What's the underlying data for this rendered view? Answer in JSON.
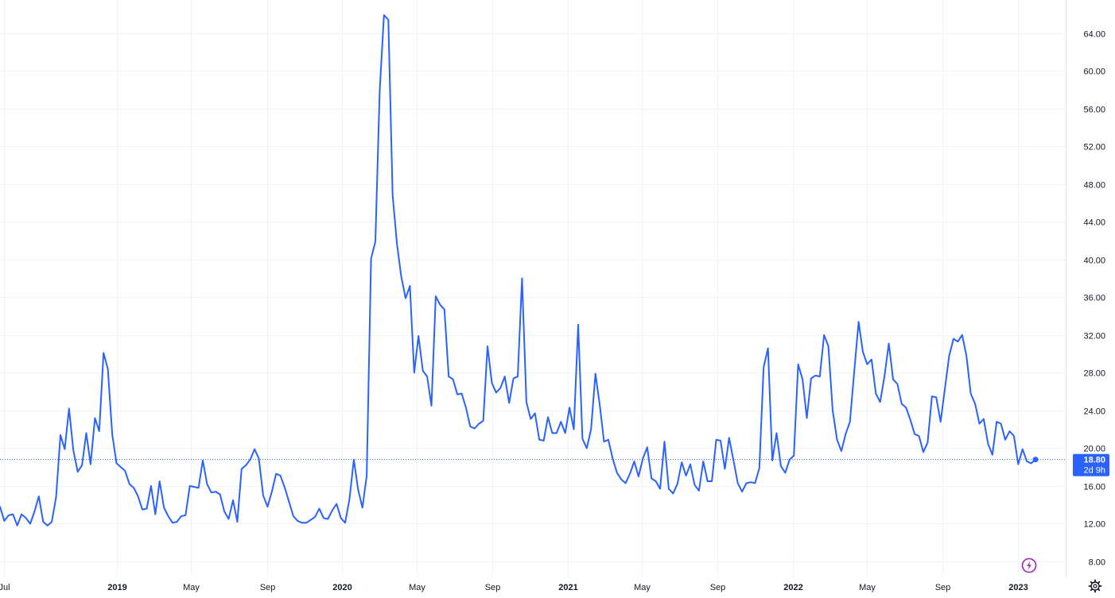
{
  "chart_data": {
    "type": "line",
    "title": "",
    "xlabel": "",
    "ylabel": "",
    "ylim": [
      6.4,
      67.5
    ],
    "xlim": [
      "2018-06-25",
      "2023-03-20"
    ],
    "grid": true,
    "y_ticks": [
      "8.00",
      "12.00",
      "16.00",
      "20.00",
      "24.00",
      "28.00",
      "32.00",
      "36.00",
      "40.00",
      "44.00",
      "48.00",
      "52.00",
      "56.00",
      "60.00",
      "64.00"
    ],
    "x_ticks": [
      {
        "label": "Jul",
        "date": "2018-07-01",
        "year": false
      },
      {
        "label": "2019",
        "date": "2019-01-01",
        "year": true
      },
      {
        "label": "May",
        "date": "2019-05-01",
        "year": false
      },
      {
        "label": "Sep",
        "date": "2019-09-01",
        "year": false
      },
      {
        "label": "2020",
        "date": "2020-01-01",
        "year": true
      },
      {
        "label": "May",
        "date": "2020-05-01",
        "year": false
      },
      {
        "label": "Sep",
        "date": "2020-09-01",
        "year": false
      },
      {
        "label": "2021",
        "date": "2021-01-01",
        "year": true
      },
      {
        "label": "May",
        "date": "2021-05-01",
        "year": false
      },
      {
        "label": "Sep",
        "date": "2021-09-01",
        "year": false
      },
      {
        "label": "2022",
        "date": "2022-01-01",
        "year": true
      },
      {
        "label": "May",
        "date": "2022-05-01",
        "year": false
      },
      {
        "label": "Sep",
        "date": "2022-09-01",
        "year": false
      },
      {
        "label": "2023",
        "date": "2023-01-01",
        "year": true
      }
    ],
    "series": [
      {
        "color": "#2962ff",
        "points": [
          [
            "2018-06-25",
            13.8
          ],
          [
            "2018-07-02",
            12.3
          ],
          [
            "2018-07-09",
            12.9
          ],
          [
            "2018-07-16",
            13.0
          ],
          [
            "2018-07-23",
            11.8
          ],
          [
            "2018-07-30",
            13.0
          ],
          [
            "2018-08-06",
            12.6
          ],
          [
            "2018-08-13",
            12.0
          ],
          [
            "2018-08-20",
            13.3
          ],
          [
            "2018-08-27",
            14.9
          ],
          [
            "2018-09-03",
            12.2
          ],
          [
            "2018-09-10",
            11.8
          ],
          [
            "2018-09-17",
            12.2
          ],
          [
            "2018-09-24",
            14.8
          ],
          [
            "2018-10-01",
            21.4
          ],
          [
            "2018-10-08",
            19.9
          ],
          [
            "2018-10-15",
            24.2
          ],
          [
            "2018-10-22",
            19.8
          ],
          [
            "2018-10-29",
            17.5
          ],
          [
            "2018-11-05",
            18.2
          ],
          [
            "2018-11-12",
            21.6
          ],
          [
            "2018-11-19",
            18.3
          ],
          [
            "2018-11-26",
            23.2
          ],
          [
            "2018-12-03",
            21.8
          ],
          [
            "2018-12-10",
            30.1
          ],
          [
            "2018-12-17",
            28.4
          ],
          [
            "2018-12-24",
            21.5
          ],
          [
            "2018-12-31",
            18.4
          ],
          [
            "2019-01-07",
            18.0
          ],
          [
            "2019-01-14",
            17.6
          ],
          [
            "2019-01-21",
            16.2
          ],
          [
            "2019-01-28",
            15.8
          ],
          [
            "2019-02-04",
            14.9
          ],
          [
            "2019-02-11",
            13.5
          ],
          [
            "2019-02-18",
            13.6
          ],
          [
            "2019-02-25",
            16.0
          ],
          [
            "2019-03-04",
            13.0
          ],
          [
            "2019-03-11",
            16.5
          ],
          [
            "2019-03-18",
            13.7
          ],
          [
            "2019-03-25",
            12.8
          ],
          [
            "2019-04-01",
            12.1
          ],
          [
            "2019-04-08",
            12.2
          ],
          [
            "2019-04-15",
            12.8
          ],
          [
            "2019-04-22",
            12.9
          ],
          [
            "2019-04-29",
            16.0
          ],
          [
            "2019-05-06",
            15.9
          ],
          [
            "2019-05-13",
            15.8
          ],
          [
            "2019-05-20",
            18.7
          ],
          [
            "2019-05-27",
            16.2
          ],
          [
            "2019-06-03",
            15.3
          ],
          [
            "2019-06-10",
            15.4
          ],
          [
            "2019-06-17",
            15.1
          ],
          [
            "2019-06-24",
            13.3
          ],
          [
            "2019-07-01",
            12.5
          ],
          [
            "2019-07-08",
            14.5
          ],
          [
            "2019-07-15",
            12.2
          ],
          [
            "2019-07-22",
            17.8
          ],
          [
            "2019-07-29",
            18.2
          ],
          [
            "2019-08-05",
            18.8
          ],
          [
            "2019-08-12",
            19.9
          ],
          [
            "2019-08-19",
            18.9
          ],
          [
            "2019-08-26",
            15.0
          ],
          [
            "2019-09-02",
            13.8
          ],
          [
            "2019-09-09",
            15.4
          ],
          [
            "2019-09-16",
            17.3
          ],
          [
            "2019-09-23",
            17.1
          ],
          [
            "2019-09-30",
            15.8
          ],
          [
            "2019-10-07",
            14.3
          ],
          [
            "2019-10-14",
            12.8
          ],
          [
            "2019-10-21",
            12.3
          ],
          [
            "2019-10-28",
            12.1
          ],
          [
            "2019-11-04",
            12.1
          ],
          [
            "2019-11-11",
            12.4
          ],
          [
            "2019-11-18",
            12.7
          ],
          [
            "2019-11-25",
            13.6
          ],
          [
            "2019-12-02",
            12.6
          ],
          [
            "2019-12-09",
            12.5
          ],
          [
            "2019-12-16",
            13.4
          ],
          [
            "2019-12-23",
            14.1
          ],
          [
            "2019-12-30",
            12.6
          ],
          [
            "2020-01-06",
            12.1
          ],
          [
            "2020-01-13",
            14.6
          ],
          [
            "2020-01-20",
            18.8
          ],
          [
            "2020-01-27",
            15.6
          ],
          [
            "2020-02-03",
            13.7
          ],
          [
            "2020-02-10",
            17.1
          ],
          [
            "2020-02-17",
            40.1
          ],
          [
            "2020-02-24",
            41.9
          ],
          [
            "2020-03-02",
            57.8
          ],
          [
            "2020-03-09",
            65.9
          ],
          [
            "2020-03-16",
            65.4
          ],
          [
            "2020-03-23",
            46.8
          ],
          [
            "2020-03-30",
            41.7
          ],
          [
            "2020-04-06",
            38.2
          ],
          [
            "2020-04-13",
            35.9
          ],
          [
            "2020-04-20",
            37.2
          ],
          [
            "2020-04-27",
            28.0
          ],
          [
            "2020-05-04",
            31.9
          ],
          [
            "2020-05-11",
            28.2
          ],
          [
            "2020-05-18",
            27.6
          ],
          [
            "2020-05-25",
            24.5
          ],
          [
            "2020-06-01",
            36.1
          ],
          [
            "2020-06-08",
            35.2
          ],
          [
            "2020-06-15",
            34.7
          ],
          [
            "2020-06-22",
            27.6
          ],
          [
            "2020-06-29",
            27.3
          ],
          [
            "2020-07-06",
            25.7
          ],
          [
            "2020-07-13",
            25.8
          ],
          [
            "2020-07-20",
            24.3
          ],
          [
            "2020-07-27",
            22.3
          ],
          [
            "2020-08-03",
            22.1
          ],
          [
            "2020-08-10",
            22.6
          ],
          [
            "2020-08-17",
            22.9
          ],
          [
            "2020-08-24",
            30.8
          ],
          [
            "2020-08-31",
            26.9
          ],
          [
            "2020-09-07",
            25.9
          ],
          [
            "2020-09-14",
            26.4
          ],
          [
            "2020-09-21",
            27.6
          ],
          [
            "2020-09-28",
            24.8
          ],
          [
            "2020-10-05",
            27.4
          ],
          [
            "2020-10-12",
            27.6
          ],
          [
            "2020-10-19",
            38.0
          ],
          [
            "2020-10-26",
            24.9
          ],
          [
            "2020-11-02",
            23.1
          ],
          [
            "2020-11-09",
            23.7
          ],
          [
            "2020-11-16",
            20.9
          ],
          [
            "2020-11-23",
            20.8
          ],
          [
            "2020-11-30",
            23.3
          ],
          [
            "2020-12-07",
            21.6
          ],
          [
            "2020-12-14",
            21.6
          ],
          [
            "2020-12-21",
            22.8
          ],
          [
            "2020-12-28",
            21.6
          ],
          [
            "2021-01-04",
            24.3
          ],
          [
            "2021-01-11",
            22.0
          ],
          [
            "2021-01-18",
            33.1
          ],
          [
            "2021-01-25",
            21.0
          ],
          [
            "2021-02-01",
            20.0
          ],
          [
            "2021-02-08",
            22.0
          ],
          [
            "2021-02-15",
            27.9
          ],
          [
            "2021-02-22",
            24.6
          ],
          [
            "2021-03-01",
            20.7
          ],
          [
            "2021-03-08",
            20.9
          ],
          [
            "2021-03-15",
            18.9
          ],
          [
            "2021-03-22",
            17.4
          ],
          [
            "2021-03-29",
            16.7
          ],
          [
            "2021-04-05",
            16.3
          ],
          [
            "2021-04-12",
            17.3
          ],
          [
            "2021-04-19",
            18.6
          ],
          [
            "2021-04-26",
            17.0
          ],
          [
            "2021-05-03",
            18.9
          ],
          [
            "2021-05-10",
            20.1
          ],
          [
            "2021-05-17",
            16.8
          ],
          [
            "2021-05-24",
            16.5
          ],
          [
            "2021-05-31",
            15.7
          ],
          [
            "2021-06-07",
            20.7
          ],
          [
            "2021-06-14",
            15.7
          ],
          [
            "2021-06-21",
            15.2
          ],
          [
            "2021-06-28",
            16.2
          ],
          [
            "2021-07-05",
            18.5
          ],
          [
            "2021-07-12",
            17.1
          ],
          [
            "2021-07-19",
            18.3
          ],
          [
            "2021-07-26",
            16.1
          ],
          [
            "2021-08-02",
            15.5
          ],
          [
            "2021-08-09",
            18.6
          ],
          [
            "2021-08-16",
            16.5
          ],
          [
            "2021-08-23",
            16.5
          ],
          [
            "2021-08-30",
            20.9
          ],
          [
            "2021-09-06",
            20.8
          ],
          [
            "2021-09-13",
            17.8
          ],
          [
            "2021-09-20",
            21.1
          ],
          [
            "2021-09-27",
            18.7
          ],
          [
            "2021-10-04",
            16.3
          ],
          [
            "2021-10-11",
            15.4
          ],
          [
            "2021-10-18",
            16.3
          ],
          [
            "2021-10-25",
            16.4
          ],
          [
            "2021-11-01",
            16.3
          ],
          [
            "2021-11-08",
            17.9
          ],
          [
            "2021-11-15",
            28.6
          ],
          [
            "2021-11-22",
            30.6
          ],
          [
            "2021-11-29",
            18.7
          ],
          [
            "2021-12-06",
            21.6
          ],
          [
            "2021-12-13",
            18.1
          ],
          [
            "2021-12-20",
            17.4
          ],
          [
            "2021-12-27",
            18.8
          ],
          [
            "2022-01-03",
            19.2
          ],
          [
            "2022-01-10",
            28.9
          ],
          [
            "2022-01-17",
            27.3
          ],
          [
            "2022-01-24",
            23.2
          ],
          [
            "2022-01-31",
            27.4
          ],
          [
            "2022-02-07",
            27.7
          ],
          [
            "2022-02-14",
            27.6
          ],
          [
            "2022-02-21",
            32.0
          ],
          [
            "2022-02-28",
            30.8
          ],
          [
            "2022-03-07",
            24.0
          ],
          [
            "2022-03-14",
            20.9
          ],
          [
            "2022-03-21",
            19.7
          ],
          [
            "2022-03-28",
            21.5
          ],
          [
            "2022-04-04",
            22.8
          ],
          [
            "2022-04-11",
            28.2
          ],
          [
            "2022-04-18",
            33.4
          ],
          [
            "2022-04-25",
            30.2
          ],
          [
            "2022-05-02",
            28.9
          ],
          [
            "2022-05-09",
            29.4
          ],
          [
            "2022-05-16",
            25.8
          ],
          [
            "2022-05-23",
            24.9
          ],
          [
            "2022-05-30",
            27.6
          ],
          [
            "2022-06-06",
            31.1
          ],
          [
            "2022-06-13",
            27.3
          ],
          [
            "2022-06-20",
            26.8
          ],
          [
            "2022-06-27",
            24.7
          ],
          [
            "2022-07-04",
            24.3
          ],
          [
            "2022-07-11",
            23.0
          ],
          [
            "2022-07-18",
            21.5
          ],
          [
            "2022-07-25",
            21.3
          ],
          [
            "2022-08-01",
            19.6
          ],
          [
            "2022-08-08",
            20.6
          ],
          [
            "2022-08-15",
            25.5
          ],
          [
            "2022-08-22",
            25.4
          ],
          [
            "2022-08-29",
            22.8
          ],
          [
            "2022-09-05",
            26.3
          ],
          [
            "2022-09-12",
            29.8
          ],
          [
            "2022-09-19",
            31.6
          ],
          [
            "2022-09-26",
            31.3
          ],
          [
            "2022-10-03",
            32.0
          ],
          [
            "2022-10-10",
            29.8
          ],
          [
            "2022-10-17",
            25.8
          ],
          [
            "2022-10-24",
            24.7
          ],
          [
            "2022-10-31",
            22.6
          ],
          [
            "2022-11-07",
            23.1
          ],
          [
            "2022-11-14",
            20.5
          ],
          [
            "2022-11-21",
            19.3
          ],
          [
            "2022-11-28",
            22.8
          ],
          [
            "2022-12-05",
            22.6
          ],
          [
            "2022-12-12",
            20.9
          ],
          [
            "2022-12-19",
            21.8
          ],
          [
            "2022-12-26",
            21.3
          ],
          [
            "2023-01-02",
            18.3
          ],
          [
            "2023-01-09",
            19.9
          ],
          [
            "2023-01-16",
            18.6
          ],
          [
            "2023-01-23",
            18.4
          ],
          [
            "2023-01-30",
            18.8
          ]
        ]
      }
    ],
    "last_value": {
      "price": "18.80",
      "countdown": "2d 9h",
      "value": 18.8
    }
  },
  "colors": {
    "line": "#2962ff",
    "grid": "#f0f3fa",
    "axis_text": "#131722",
    "price_tag": "#2962ff",
    "badge": "#9c27b0"
  },
  "icons": {
    "badge": "lightning-icon",
    "settings": "gear-icon"
  }
}
